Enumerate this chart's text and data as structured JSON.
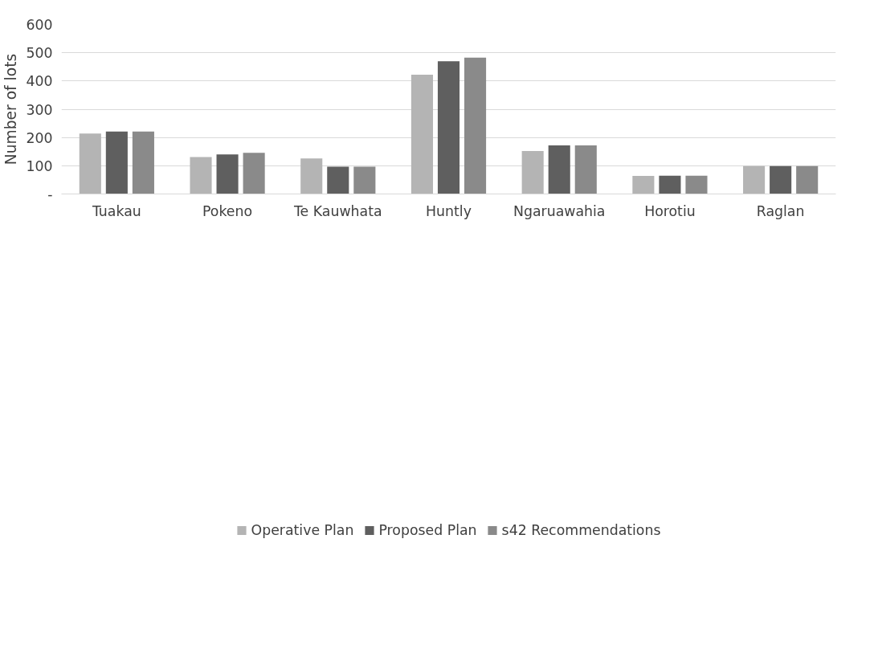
{
  "chart_data": {
    "type": "bar",
    "ylabel": "Number of lots",
    "categories": [
      "Tuakau",
      "Pokeno",
      "Te Kauwhata",
      "Huntly",
      "Ngaruawahia",
      "Horotiu",
      "Raglan"
    ],
    "series": [
      {
        "name": "Operative Plan",
        "color": "#b4b4b4",
        "values": [
          214,
          131,
          126,
          422,
          152,
          64,
          99
        ]
      },
      {
        "name": "Proposed Plan",
        "color": "#5f5f5f",
        "values": [
          221,
          140,
          97,
          470,
          172,
          65,
          99
        ]
      },
      {
        "name": "s42 Recommendations",
        "color": "#8a8a8a",
        "values": [
          221,
          146,
          97,
          483,
          172,
          65,
          99
        ]
      }
    ],
    "ylim": [
      0,
      600
    ],
    "yticks": [
      {
        "value": 0,
        "label": "-"
      },
      100,
      200,
      300,
      400,
      500,
      600
    ],
    "grid": "y",
    "legend": "bottom"
  }
}
